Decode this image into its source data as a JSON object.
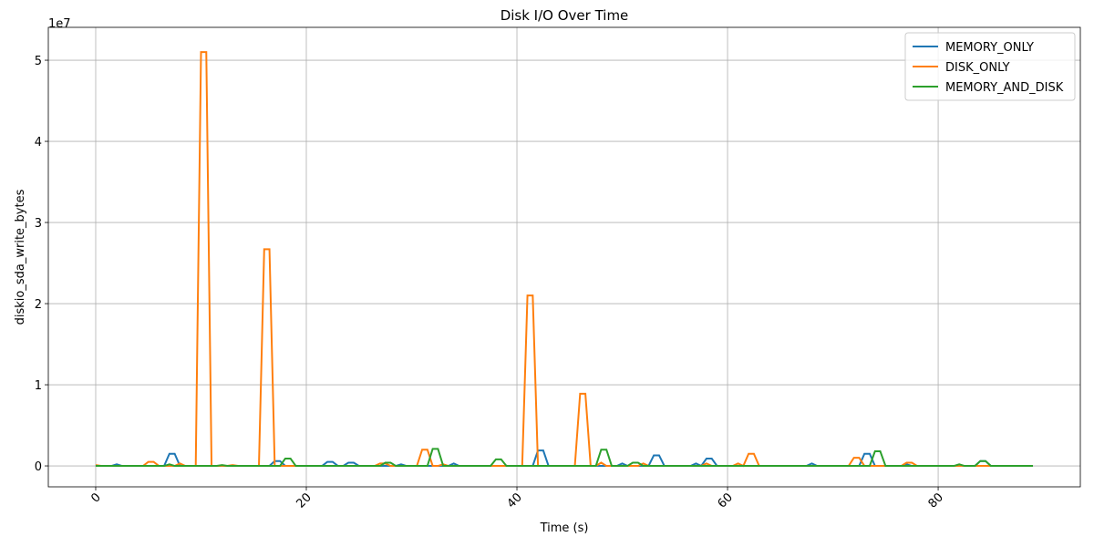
{
  "chart_data": {
    "type": "line",
    "title": "Disk I/O Over Time",
    "xlabel": "Time (s)",
    "ylabel": "diskio_sda_write_bytes",
    "y_offset_label": "1e7",
    "x": [
      0,
      0.5,
      1,
      1.5,
      2,
      2.5,
      3,
      3.5,
      4,
      4.5,
      5,
      5.5,
      6,
      6.5,
      7,
      7.5,
      8,
      8.5,
      9,
      9.5,
      10,
      10.5,
      11,
      11.5,
      12,
      12.5,
      13,
      13.5,
      14,
      14.5,
      15,
      15.5,
      16,
      16.5,
      17,
      17.5,
      18,
      18.5,
      19,
      19.5,
      20,
      20.5,
      21,
      21.5,
      22,
      22.5,
      23,
      23.5,
      24,
      24.5,
      25,
      25.5,
      26,
      26.5,
      27,
      27.5,
      28,
      28.5,
      29,
      29.5,
      30,
      30.5,
      31,
      31.5,
      32,
      32.5,
      33,
      33.5,
      34,
      34.5,
      35,
      35.5,
      36,
      36.5,
      37,
      37.5,
      38,
      38.5,
      39,
      39.5,
      40,
      40.5,
      41,
      41.5,
      42,
      42.5,
      43,
      43.5,
      44,
      44.5,
      45,
      45.5,
      46,
      46.5,
      47,
      47.5,
      48,
      48.5,
      49,
      49.5,
      50,
      50.5,
      51,
      51.5,
      52,
      52.5,
      53,
      53.5,
      54,
      54.5,
      55,
      55.5,
      56,
      56.5,
      57,
      57.5,
      58,
      58.5,
      59,
      59.5,
      60,
      60.5,
      61,
      61.5,
      62,
      62.5,
      63,
      63.5,
      64,
      64.5,
      65,
      65.5,
      66,
      66.5,
      67,
      67.5,
      68,
      68.5,
      69,
      69.5,
      70,
      70.5,
      71,
      71.5,
      72,
      72.5,
      73,
      73.5,
      74,
      74.5,
      75,
      75.5,
      76,
      76.5,
      77,
      77.5,
      78,
      78.5,
      79,
      79.5,
      80,
      80.5,
      81,
      81.5,
      82,
      82.5,
      83,
      83.5,
      84,
      84.5,
      85,
      85.5,
      86,
      86.5,
      87,
      87.5,
      88,
      88.5,
      89
    ],
    "series": [
      {
        "name": "MEMORY_ONLY",
        "color": "#1f77b4",
        "values": [
          0,
          0,
          0,
          0,
          200000,
          0,
          0,
          0,
          0,
          0,
          0,
          0,
          0,
          0,
          1500000,
          1500000,
          0,
          0,
          0,
          0,
          0,
          0,
          0,
          0,
          0,
          0,
          0,
          0,
          0,
          0,
          0,
          0,
          0,
          0,
          600000,
          600000,
          0,
          0,
          0,
          0,
          0,
          0,
          0,
          0,
          500000,
          500000,
          0,
          0,
          400000,
          400000,
          0,
          0,
          0,
          0,
          0,
          0,
          0,
          0,
          200000,
          0,
          0,
          0,
          0,
          0,
          0,
          0,
          0,
          0,
          300000,
          0,
          0,
          0,
          0,
          0,
          0,
          0,
          0,
          0,
          0,
          0,
          0,
          0,
          0,
          0,
          1900000,
          1900000,
          0,
          0,
          0,
          0,
          0,
          0,
          0,
          0,
          0,
          0,
          0,
          0,
          0,
          0,
          300000,
          0,
          0,
          0,
          0,
          0,
          1300000,
          1300000,
          0,
          0,
          0,
          0,
          0,
          0,
          300000,
          0,
          900000,
          900000,
          0,
          0,
          0,
          0,
          0,
          0,
          0,
          0,
          0,
          0,
          0,
          0,
          0,
          0,
          0,
          0,
          0,
          0,
          300000,
          0,
          0,
          0,
          0,
          0,
          0,
          0,
          0,
          0,
          1500000,
          1500000,
          0,
          0,
          0,
          0,
          0,
          0,
          200000,
          0,
          0,
          0,
          0,
          0,
          0,
          0,
          0,
          0,
          0,
          0,
          0,
          0,
          600000,
          600000,
          0,
          0,
          0,
          0,
          0,
          0,
          0,
          0,
          0
        ]
      },
      {
        "name": "DISK_ONLY",
        "color": "#ff7f0e",
        "values": [
          100000,
          0,
          0,
          0,
          0,
          0,
          0,
          0,
          0,
          0,
          500000,
          500000,
          0,
          0,
          0,
          0,
          300000,
          0,
          0,
          0,
          51000000,
          51000000,
          0,
          0,
          0,
          0,
          100000,
          0,
          0,
          0,
          0,
          0,
          26700000,
          26700000,
          0,
          0,
          0,
          0,
          0,
          0,
          0,
          0,
          0,
          0,
          0,
          0,
          0,
          0,
          0,
          0,
          0,
          0,
          0,
          0,
          300000,
          300000,
          0,
          0,
          0,
          0,
          0,
          0,
          2000000,
          2000000,
          0,
          0,
          200000,
          0,
          0,
          0,
          0,
          0,
          0,
          0,
          0,
          0,
          0,
          0,
          0,
          0,
          0,
          0,
          21000000,
          21000000,
          0,
          0,
          0,
          0,
          0,
          0,
          0,
          0,
          8900000,
          8900000,
          0,
          0,
          400000,
          0,
          0,
          0,
          0,
          0,
          0,
          0,
          300000,
          0,
          0,
          0,
          0,
          0,
          0,
          0,
          0,
          0,
          0,
          0,
          300000,
          0,
          0,
          0,
          0,
          0,
          300000,
          0,
          1500000,
          1500000,
          0,
          0,
          0,
          0,
          0,
          0,
          0,
          0,
          0,
          0,
          0,
          0,
          0,
          0,
          0,
          0,
          0,
          0,
          1000000,
          1000000,
          0,
          0,
          0,
          0,
          0,
          0,
          0,
          0,
          400000,
          400000,
          0,
          0,
          0,
          0,
          0,
          0,
          0,
          0,
          0,
          0,
          0,
          0,
          0,
          0,
          0,
          0,
          0,
          0,
          0,
          0,
          0,
          0,
          0
        ]
      },
      {
        "name": "MEMORY_AND_DISK",
        "color": "#2ca02c",
        "values": [
          0,
          0,
          0,
          0,
          0,
          0,
          0,
          0,
          0,
          0,
          0,
          0,
          0,
          0,
          200000,
          0,
          0,
          0,
          0,
          0,
          0,
          0,
          0,
          0,
          100000,
          0,
          0,
          0,
          0,
          0,
          0,
          0,
          0,
          0,
          0,
          0,
          900000,
          900000,
          0,
          0,
          0,
          0,
          0,
          0,
          0,
          0,
          0,
          0,
          0,
          0,
          0,
          0,
          0,
          0,
          0,
          400000,
          400000,
          0,
          0,
          0,
          0,
          0,
          0,
          0,
          2100000,
          2100000,
          0,
          0,
          0,
          0,
          0,
          0,
          0,
          0,
          0,
          0,
          800000,
          800000,
          0,
          0,
          0,
          0,
          0,
          0,
          0,
          0,
          0,
          0,
          0,
          0,
          0,
          0,
          0,
          0,
          0,
          0,
          2000000,
          2000000,
          0,
          0,
          0,
          0,
          400000,
          400000,
          0,
          0,
          0,
          0,
          0,
          0,
          0,
          0,
          0,
          0,
          0,
          0,
          0,
          0,
          0,
          0,
          0,
          0,
          0,
          0,
          0,
          0,
          0,
          0,
          0,
          0,
          0,
          0,
          0,
          0,
          0,
          0,
          0,
          0,
          0,
          0,
          0,
          0,
          0,
          0,
          0,
          0,
          0,
          0,
          1800000,
          1800000,
          0,
          0,
          0,
          0,
          0,
          0,
          0,
          0,
          0,
          0,
          0,
          0,
          0,
          0,
          200000,
          0,
          0,
          0,
          600000,
          600000,
          0,
          0,
          0,
          0,
          0,
          0,
          0,
          0,
          0
        ]
      }
    ],
    "xlim": [
      -4.5,
      93.5
    ],
    "xticks": [
      0,
      20,
      40,
      60,
      80
    ],
    "ylim": [
      -2580000,
      54050000
    ],
    "yticks": [
      0,
      {
        "value": 10000000,
        "label": "1"
      },
      {
        "value": 20000000,
        "label": "2"
      },
      {
        "value": 30000000,
        "label": "3"
      },
      {
        "value": 40000000,
        "label": "4"
      },
      {
        "value": 50000000,
        "label": "5"
      }
    ],
    "grid": true,
    "legend": "upper right"
  }
}
